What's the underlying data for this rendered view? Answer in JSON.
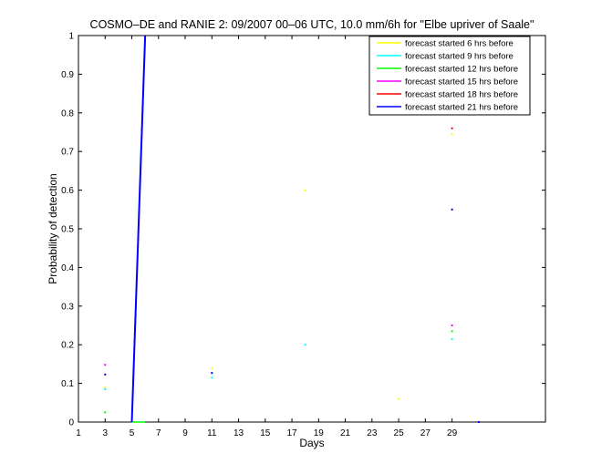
{
  "chart_data": {
    "type": "line",
    "title": "COSMO–DE and RANIE 2: 09/2007 00–06 UTC, 10.0 mm/6h for \"Elbe upriver of Saale\"",
    "xlabel": "Days",
    "ylabel": "Probability of detection",
    "xlim": [
      1,
      36
    ],
    "ylim": [
      0,
      1
    ],
    "xticks": [
      "1",
      "3",
      "5",
      "7",
      "9",
      "11",
      "13",
      "15",
      "17",
      "19",
      "21",
      "23",
      "25",
      "27",
      "29"
    ],
    "xtick_values": [
      1,
      3,
      5,
      7,
      9,
      11,
      13,
      15,
      17,
      19,
      21,
      23,
      25,
      27,
      29
    ],
    "yticks": [
      "0",
      "0.1",
      "0.2",
      "0.3",
      "0.4",
      "0.5",
      "0.6",
      "0.7",
      "0.8",
      "0.9",
      "1"
    ],
    "ytick_values": [
      0,
      0.1,
      0.2,
      0.3,
      0.4,
      0.5,
      0.6,
      0.7,
      0.8,
      0.9,
      1
    ],
    "grid": false,
    "legend_position": "top-right",
    "series": [
      {
        "name": "forecast started 6 hrs before",
        "color": "#ffff00",
        "x": [
          1,
          2,
          3,
          4,
          5,
          6,
          7,
          8,
          9,
          10,
          11,
          12,
          13,
          14,
          15,
          16,
          17,
          18,
          19,
          20,
          21,
          22,
          23,
          24,
          25,
          26,
          27,
          28,
          29,
          30,
          31
        ],
        "y": [
          null,
          null,
          0.09,
          null,
          null,
          null,
          null,
          null,
          null,
          null,
          0.14,
          null,
          null,
          null,
          null,
          null,
          null,
          0.6,
          null,
          null,
          null,
          null,
          null,
          null,
          0.06,
          null,
          null,
          null,
          0.745,
          null,
          null
        ]
      },
      {
        "name": "forecast started 9 hrs before",
        "color": "#00ffff",
        "x": [
          1,
          2,
          3,
          4,
          5,
          6,
          7,
          8,
          9,
          10,
          11,
          12,
          13,
          14,
          15,
          16,
          17,
          18,
          19,
          20,
          21,
          22,
          23,
          24,
          25,
          26,
          27,
          28,
          29,
          30,
          31
        ],
        "y": [
          null,
          null,
          0.085,
          null,
          null,
          null,
          null,
          null,
          null,
          null,
          0.115,
          null,
          null,
          null,
          null,
          null,
          null,
          0.2,
          null,
          null,
          null,
          null,
          null,
          null,
          null,
          null,
          null,
          null,
          0.215,
          null,
          null
        ]
      },
      {
        "name": "forecast started 12 hrs before",
        "color": "#00ff00",
        "x": [
          1,
          2,
          3,
          4,
          5,
          6,
          7,
          8,
          9,
          10,
          11,
          12,
          13,
          14,
          15,
          16,
          17,
          18,
          19,
          20,
          21,
          22,
          23,
          24,
          25,
          26,
          27,
          28,
          29,
          30,
          31
        ],
        "y": [
          null,
          null,
          0.025,
          null,
          0,
          0,
          null,
          null,
          null,
          null,
          null,
          null,
          null,
          null,
          null,
          null,
          null,
          null,
          null,
          null,
          null,
          null,
          null,
          null,
          null,
          null,
          null,
          null,
          0.235,
          null,
          null
        ]
      },
      {
        "name": "forecast started 15 hrs before",
        "color": "#ff00ff",
        "x": [
          1,
          2,
          3,
          4,
          5,
          6,
          7,
          8,
          9,
          10,
          11,
          12,
          13,
          14,
          15,
          16,
          17,
          18,
          19,
          20,
          21,
          22,
          23,
          24,
          25,
          26,
          27,
          28,
          29,
          30,
          31
        ],
        "y": [
          null,
          null,
          0.148,
          null,
          null,
          null,
          null,
          null,
          null,
          null,
          null,
          null,
          null,
          null,
          null,
          null,
          null,
          null,
          null,
          null,
          null,
          null,
          null,
          null,
          null,
          null,
          null,
          null,
          0.25,
          null,
          null
        ]
      },
      {
        "name": "forecast started 18 hrs before",
        "color": "#ff0000",
        "x": [
          1,
          2,
          3,
          4,
          5,
          6,
          7,
          8,
          9,
          10,
          11,
          12,
          13,
          14,
          15,
          16,
          17,
          18,
          19,
          20,
          21,
          22,
          23,
          24,
          25,
          26,
          27,
          28,
          29,
          30,
          31
        ],
        "y": [
          null,
          null,
          null,
          null,
          null,
          null,
          null,
          null,
          null,
          null,
          null,
          null,
          null,
          null,
          null,
          null,
          null,
          null,
          null,
          null,
          null,
          null,
          null,
          null,
          null,
          null,
          null,
          null,
          0.76,
          null,
          null
        ]
      },
      {
        "name": "forecast started 21 hrs before",
        "color": "#0000ff",
        "x": [
          1,
          2,
          3,
          4,
          5,
          6,
          7,
          8,
          9,
          10,
          11,
          12,
          13,
          14,
          15,
          16,
          17,
          18,
          19,
          20,
          21,
          22,
          23,
          24,
          25,
          26,
          27,
          28,
          29,
          30,
          31
        ],
        "y": [
          null,
          null,
          0.123,
          null,
          0,
          1,
          null,
          null,
          null,
          null,
          0.127,
          null,
          null,
          null,
          null,
          null,
          null,
          null,
          null,
          null,
          null,
          null,
          null,
          null,
          null,
          null,
          null,
          null,
          0.55,
          null,
          0
        ]
      }
    ]
  }
}
